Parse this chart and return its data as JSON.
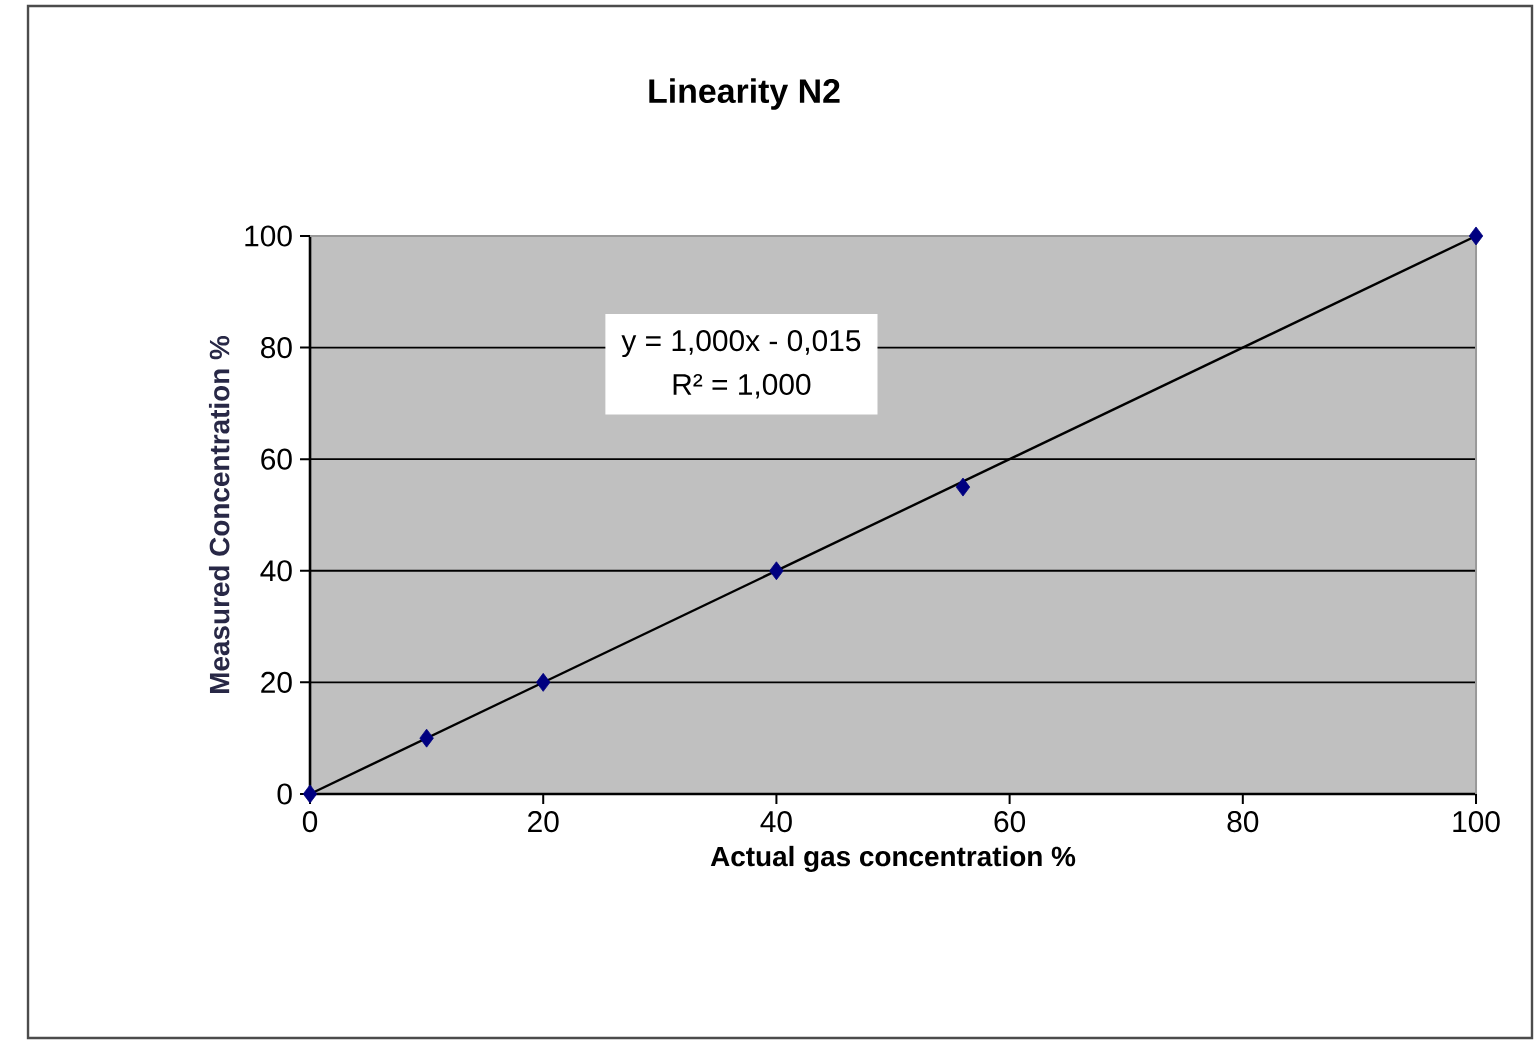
{
  "chart_data": {
    "type": "scatter",
    "title": "Linearity N2",
    "xlabel": "Actual gas concentration %",
    "ylabel": "Measured Concentration %",
    "annotations": [
      "y = 1,000x - 0,015",
      "R² = 1,000"
    ],
    "series": [
      {
        "color": "#000080",
        "marker": "diamond",
        "x": [
          0,
          10,
          20,
          40,
          56,
          100
        ],
        "values": [
          0,
          10,
          20,
          40,
          55,
          100
        ]
      },
      {
        "type": "line",
        "color": "#000000",
        "x": [
          0,
          100
        ],
        "values": [
          0,
          100
        ]
      }
    ],
    "xlim": [
      0,
      100
    ],
    "ylim": [
      0,
      100
    ],
    "xticks": [
      0,
      20,
      40,
      60,
      80,
      100
    ],
    "yticks": [
      0,
      20,
      40,
      60,
      80,
      100
    ],
    "grid": "y"
  }
}
